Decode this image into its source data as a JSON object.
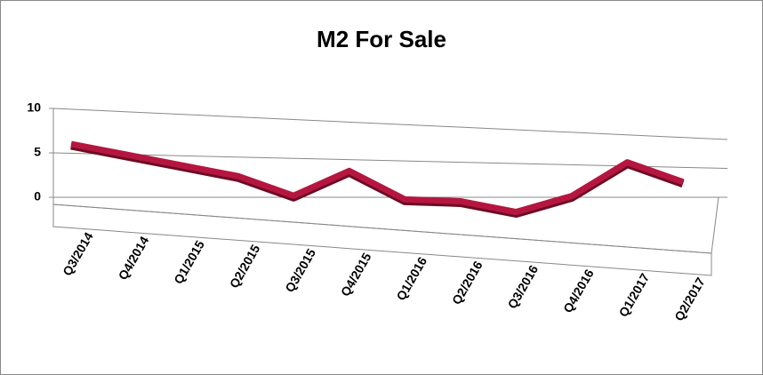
{
  "chart_data": {
    "type": "line3d",
    "title": "M2 For Sale",
    "categories": [
      "Q3/2014",
      "Q4/2014",
      "Q1/2015",
      "Q2/2015",
      "Q3/2015",
      "Q4/2015",
      "Q1/2016",
      "Q2/2016",
      "Q3/2016",
      "Q4/2016",
      "Q1/2017",
      "Q2/2017"
    ],
    "values": [
      6,
      5,
      4,
      3,
      1,
      4,
      1,
      1,
      0,
      2,
      6,
      4
    ],
    "color": "#b5163f",
    "ylim": [
      0,
      10
    ],
    "yticks": [
      0,
      5,
      10
    ],
    "grid": true
  }
}
